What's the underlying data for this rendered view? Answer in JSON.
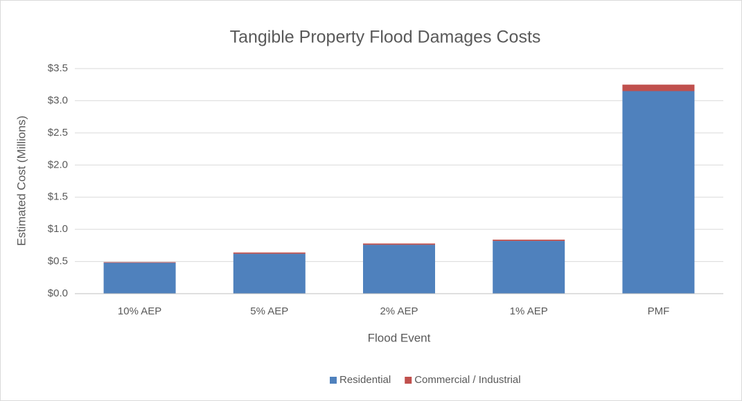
{
  "chart_data": {
    "type": "stacked_bar",
    "title": "Tangible Property Flood Damages Costs",
    "x_label": "Flood Event",
    "y_label": "Estimated Cost (Millions)",
    "categories": [
      "10% AEP",
      "5% AEP",
      "2% AEP",
      "1% AEP",
      "PMF"
    ],
    "series": [
      {
        "name": "Residential",
        "color": "#4f81bd",
        "values": [
          0.48,
          0.62,
          0.76,
          0.82,
          3.15
        ]
      },
      {
        "name": "Commercial / Industrial",
        "color": "#c0504d",
        "values": [
          0.01,
          0.02,
          0.02,
          0.02,
          0.1
        ]
      }
    ],
    "ylim": [
      0,
      3.5
    ],
    "yticks": [
      {
        "value": 0,
        "label": "$0.0"
      },
      {
        "value": 0.5,
        "label": "$0.5"
      },
      {
        "value": 1,
        "label": "$1.0"
      },
      {
        "value": 1.5,
        "label": "$1.5"
      },
      {
        "value": 2,
        "label": "$2.0"
      },
      {
        "value": 2.5,
        "label": "$2.5"
      },
      {
        "value": 3,
        "label": "$3.0"
      },
      {
        "value": 3.5,
        "label": "$3.5"
      }
    ],
    "grid": true,
    "legend": "bottom"
  }
}
